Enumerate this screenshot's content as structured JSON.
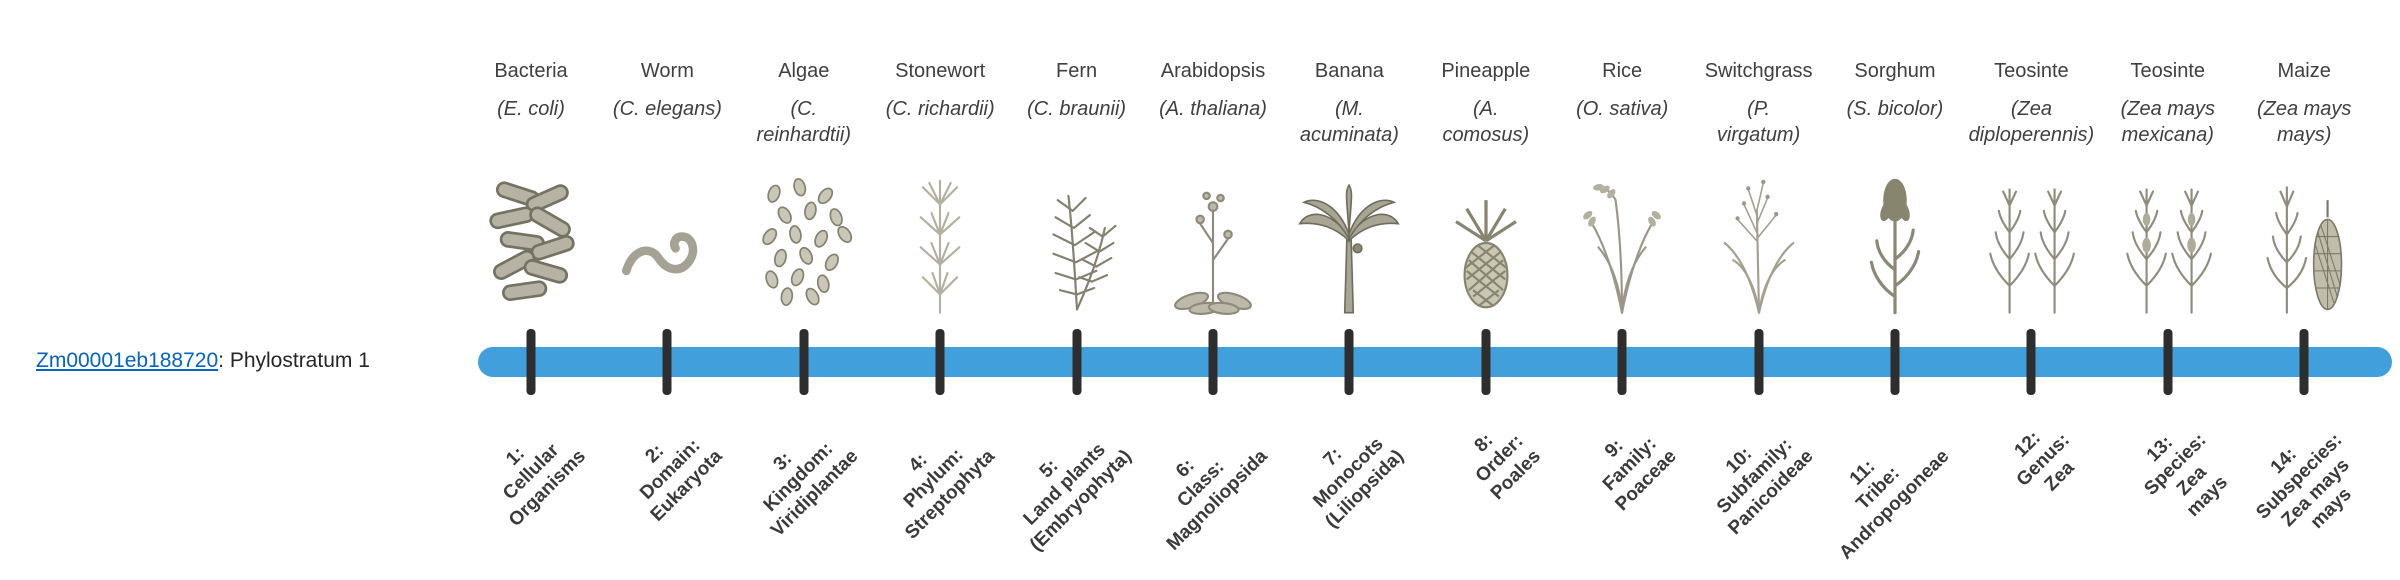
{
  "gene_label": {
    "id": "Zm00001eb188720",
    "suffix": ": Phylostratum 1"
  },
  "colors": {
    "timeline": "#419FDC",
    "tick": "#2E2E2E",
    "link": "#0563C1",
    "text": "#3F3F3F"
  },
  "columns": [
    {
      "name": "Bacteria",
      "sci": "(E. coli)",
      "icon": "bacteria-icon",
      "stratum": "1:\nCellular\nOrganisms"
    },
    {
      "name": "Worm",
      "sci": "(C. elegans)",
      "icon": "worm-icon",
      "stratum": "2:\nDomain:\nEukaryota"
    },
    {
      "name": "Algae",
      "sci": "(C.\nreinhardtii)",
      "icon": "algae-icon",
      "stratum": "3:\nKingdom:\nViridiplantae"
    },
    {
      "name": "Stonewort",
      "sci": "(C. richardii)",
      "icon": "stonewort-icon",
      "stratum": "4:\nPhylum:\nStreptophyta"
    },
    {
      "name": "Fern",
      "sci": "(C. braunii)",
      "icon": "fern-icon",
      "stratum": "5:\nLand plants\n(Embryophyta)"
    },
    {
      "name": "Arabidopsis",
      "sci": "(A. thaliana)",
      "icon": "arabidopsis-icon",
      "stratum": "6:\nClass:\nMagnoliopsida"
    },
    {
      "name": "Banana",
      "sci": "(M.\nacuminata)",
      "icon": "banana-icon",
      "stratum": "7:\nMonocots\n(Liliopsida)"
    },
    {
      "name": "Pineapple",
      "sci": "(A.\ncomosus)",
      "icon": "pineapple-icon",
      "stratum": "8:\nOrder:\nPoales"
    },
    {
      "name": "Rice",
      "sci": "(O. sativa)",
      "icon": "rice-icon",
      "stratum": "9:\nFamily:\nPoaceae"
    },
    {
      "name": "Switchgrass",
      "sci": "(P.\nvirgatum)",
      "icon": "switchgrass-icon",
      "stratum": "10:\nSubfamily:\nPanicoideae"
    },
    {
      "name": "Sorghum",
      "sci": "(S. bicolor)",
      "icon": "sorghum-icon",
      "stratum": "11:\nTribe:\nAndropogoneae"
    },
    {
      "name": "Teosinte",
      "sci": "(Zea\ndiploperennis)",
      "icon": "teosinte-diploperennis-icon",
      "stratum": "12:\nGenus:\nZea"
    },
    {
      "name": "Teosinte",
      "sci": "(Zea mays\nmexicana)",
      "icon": "teosinte-mexicana-icon",
      "stratum": "13:\nSpecies:\nZea\nmays"
    },
    {
      "name": "Maize",
      "sci": "(Zea mays\nmays)",
      "icon": "maize-icon",
      "stratum": "14:\nSubspecies:\nZea mays\nmays"
    }
  ]
}
